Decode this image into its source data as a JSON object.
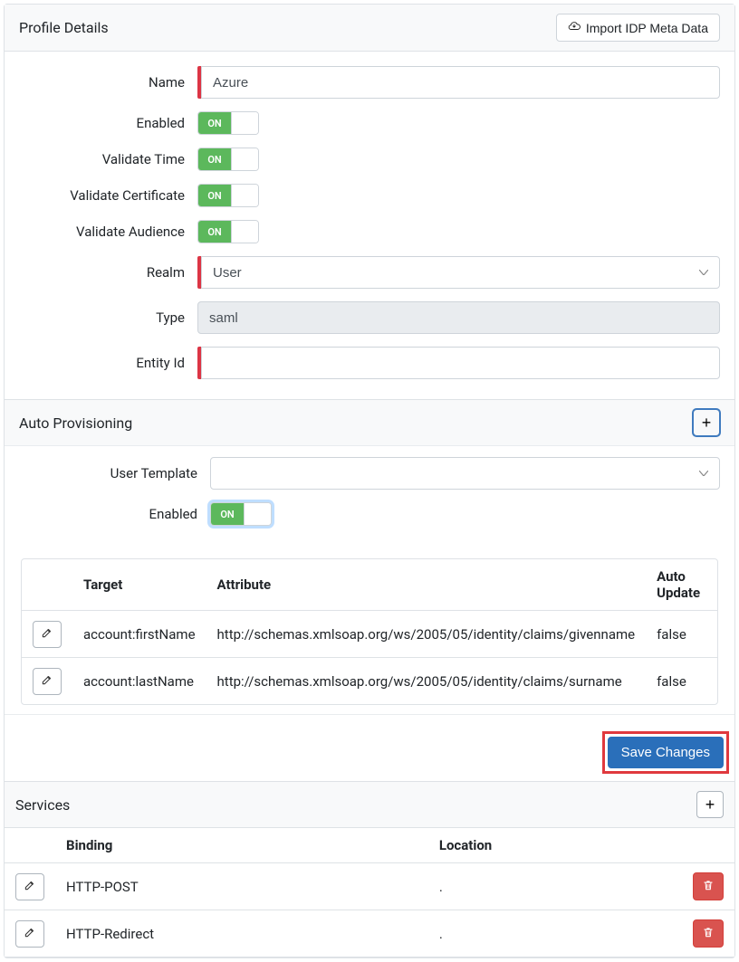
{
  "profile": {
    "panel_title": "Profile Details",
    "import_button": "Import IDP Meta Data",
    "labels": {
      "name": "Name",
      "enabled": "Enabled",
      "validate_time": "Validate Time",
      "validate_certificate": "Validate Certificate",
      "validate_audience": "Validate Audience",
      "realm": "Realm",
      "type": "Type",
      "entity_id": "Entity Id"
    },
    "values": {
      "name": "Azure",
      "realm": "User",
      "type": "saml",
      "entity_id": ""
    },
    "toggle_text": "ON"
  },
  "autoprov": {
    "title": "Auto Provisioning",
    "labels": {
      "user_template": "User Template",
      "enabled": "Enabled"
    },
    "values": {
      "user_template": ""
    },
    "toggle_text": "ON",
    "columns": {
      "target": "Target",
      "attribute": "Attribute",
      "auto_update": "Auto Update"
    },
    "rows": [
      {
        "target": "account:firstName",
        "attribute": "http://schemas.xmlsoap.org/ws/2005/05/identity/claims/givenname",
        "auto_update": "false"
      },
      {
        "target": "account:lastName",
        "attribute": "http://schemas.xmlsoap.org/ws/2005/05/identity/claims/surname",
        "auto_update": "false"
      }
    ]
  },
  "save_button": "Save Changes",
  "services": {
    "title": "Services",
    "columns": {
      "binding": "Binding",
      "location": "Location"
    },
    "rows": [
      {
        "binding": "HTTP-POST",
        "location": "."
      },
      {
        "binding": "HTTP-Redirect",
        "location": "."
      }
    ]
  },
  "colors": {
    "required_bar": "#dc3545",
    "toggle_on": "#5cb85c",
    "primary": "#2a6fba",
    "danger": "#d9534f",
    "highlight_border": "#e0393e",
    "focus_ring": "rgba(128,189,255,0.5)"
  }
}
